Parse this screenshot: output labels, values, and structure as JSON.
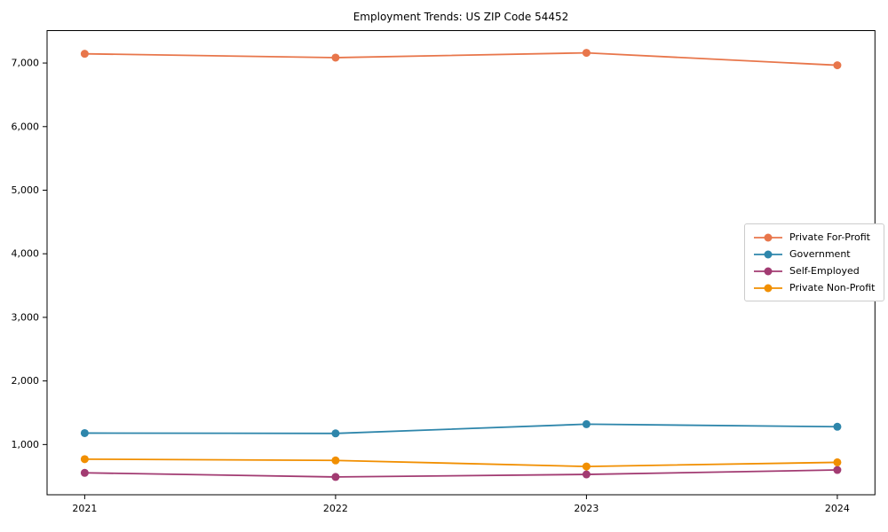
{
  "window": {
    "background": "#ffffff",
    "axis_color": "#000000"
  },
  "chart_data": {
    "type": "line",
    "title": "Employment Trends: US ZIP Code 54452",
    "xlabel": "",
    "ylabel": "",
    "x": [
      2021,
      2022,
      2023,
      2024
    ],
    "x_tick_labels": [
      "2021",
      "2022",
      "2023",
      "2024"
    ],
    "y_ticks": [
      1000,
      2000,
      3000,
      4000,
      5000,
      6000,
      7000
    ],
    "y_tick_labels": [
      "1,000",
      "2,000",
      "3,000",
      "4,000",
      "5,000",
      "6,000",
      "7,000"
    ],
    "xlim": [
      2020.85,
      2024.15
    ],
    "ylim": [
      210,
      7510
    ],
    "grid": false,
    "legend": {
      "position": "center-right",
      "border_color": "#cccccc",
      "background": "#ffffff"
    },
    "series": [
      {
        "name": "Private For-Profit",
        "color": "#E8764B",
        "marker": "circle",
        "values": [
          7145,
          7085,
          7160,
          6965
        ]
      },
      {
        "name": "Government",
        "color": "#2E86AB",
        "marker": "circle",
        "values": [
          1180,
          1175,
          1320,
          1280
        ]
      },
      {
        "name": "Self-Employed",
        "color": "#A23B72",
        "marker": "circle",
        "values": [
          555,
          490,
          530,
          600
        ]
      },
      {
        "name": "Private Non-Profit",
        "color": "#F18F01",
        "marker": "circle",
        "values": [
          770,
          750,
          655,
          720
        ]
      }
    ]
  }
}
